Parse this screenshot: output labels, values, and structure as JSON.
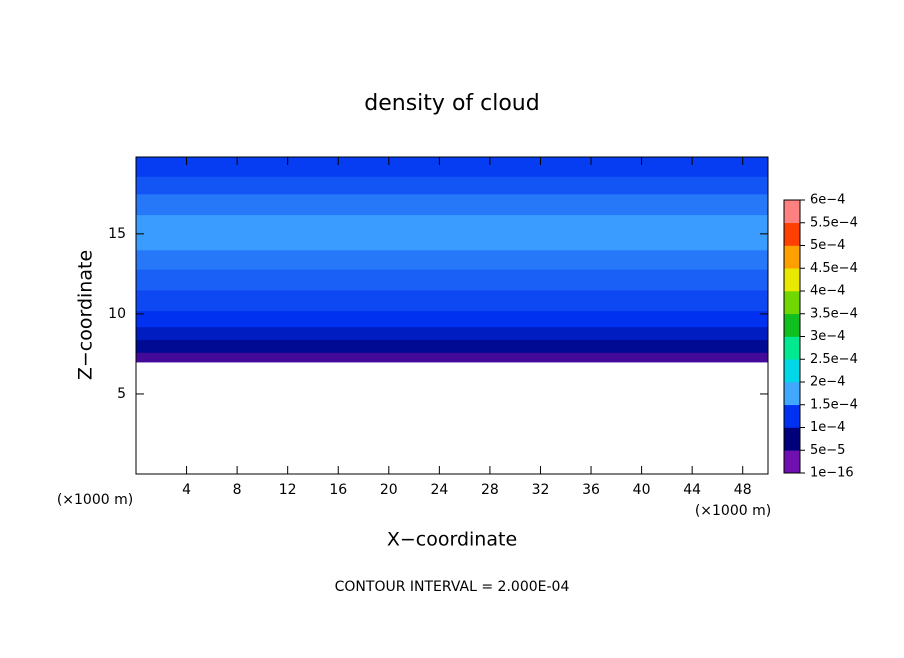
{
  "chart_data": {
    "type": "contour",
    "title": "density of cloud",
    "x_label": "X−coordinate",
    "y_label": "Z−coordinate",
    "x_unit_left": "(×1000 m)",
    "x_unit_right": "(×1000 m)",
    "footer": "CONTOUR INTERVAL = 2.000E-04",
    "xlim": [
      0,
      50
    ],
    "xticks": [
      4,
      8,
      12,
      16,
      20,
      24,
      28,
      32,
      36,
      40,
      44,
      48
    ],
    "ylim": [
      0,
      19.8
    ],
    "yticks": [
      5,
      10,
      15
    ],
    "field": {
      "z": [
        [
          7,
          7.6
        ],
        [
          7.6,
          8.4
        ],
        [
          8.4,
          9.2
        ],
        [
          9.2,
          10.2
        ],
        [
          10.2,
          11.5
        ],
        [
          11.5,
          12.8
        ],
        [
          12.8,
          14
        ],
        [
          14,
          16.2
        ],
        [
          16.2,
          17.5
        ],
        [
          17.5,
          18.6
        ],
        [
          18.6,
          19.8
        ]
      ],
      "values": [
        2e-05,
        6e-05,
        8e-05,
        0.0001,
        0.00011,
        0.00012,
        0.00013,
        0.000145,
        0.00013,
        0.000115,
        0.000105
      ]
    },
    "colorbar": {
      "ticks": [
        {
          "value": 1e-16,
          "label": "1e−16"
        },
        {
          "value": 5e-05,
          "label": "5e−5"
        },
        {
          "value": 0.0001,
          "label": "1e−4"
        },
        {
          "value": 0.00015,
          "label": "1.5e−4"
        },
        {
          "value": 0.0002,
          "label": "2e−4"
        },
        {
          "value": 0.00025,
          "label": "2.5e−4"
        },
        {
          "value": 0.0003,
          "label": "3e−4"
        },
        {
          "value": 0.00035,
          "label": "3.5e−4"
        },
        {
          "value": 0.0004,
          "label": "4e−4"
        },
        {
          "value": 0.00045,
          "label": "4.5e−4"
        },
        {
          "value": 0.0005,
          "label": "5e−4"
        },
        {
          "value": 0.00055,
          "label": "5.5e−4"
        },
        {
          "value": 0.0006,
          "label": "6e−4"
        }
      ],
      "colors": [
        "#7010b0",
        "#00007a",
        "#0030f0",
        "#40a8ff",
        "#00d8e8",
        "#00e890",
        "#10c020",
        "#70d800",
        "#e8e800",
        "#ffa000",
        "#ff4000",
        "#ff8080"
      ]
    }
  }
}
